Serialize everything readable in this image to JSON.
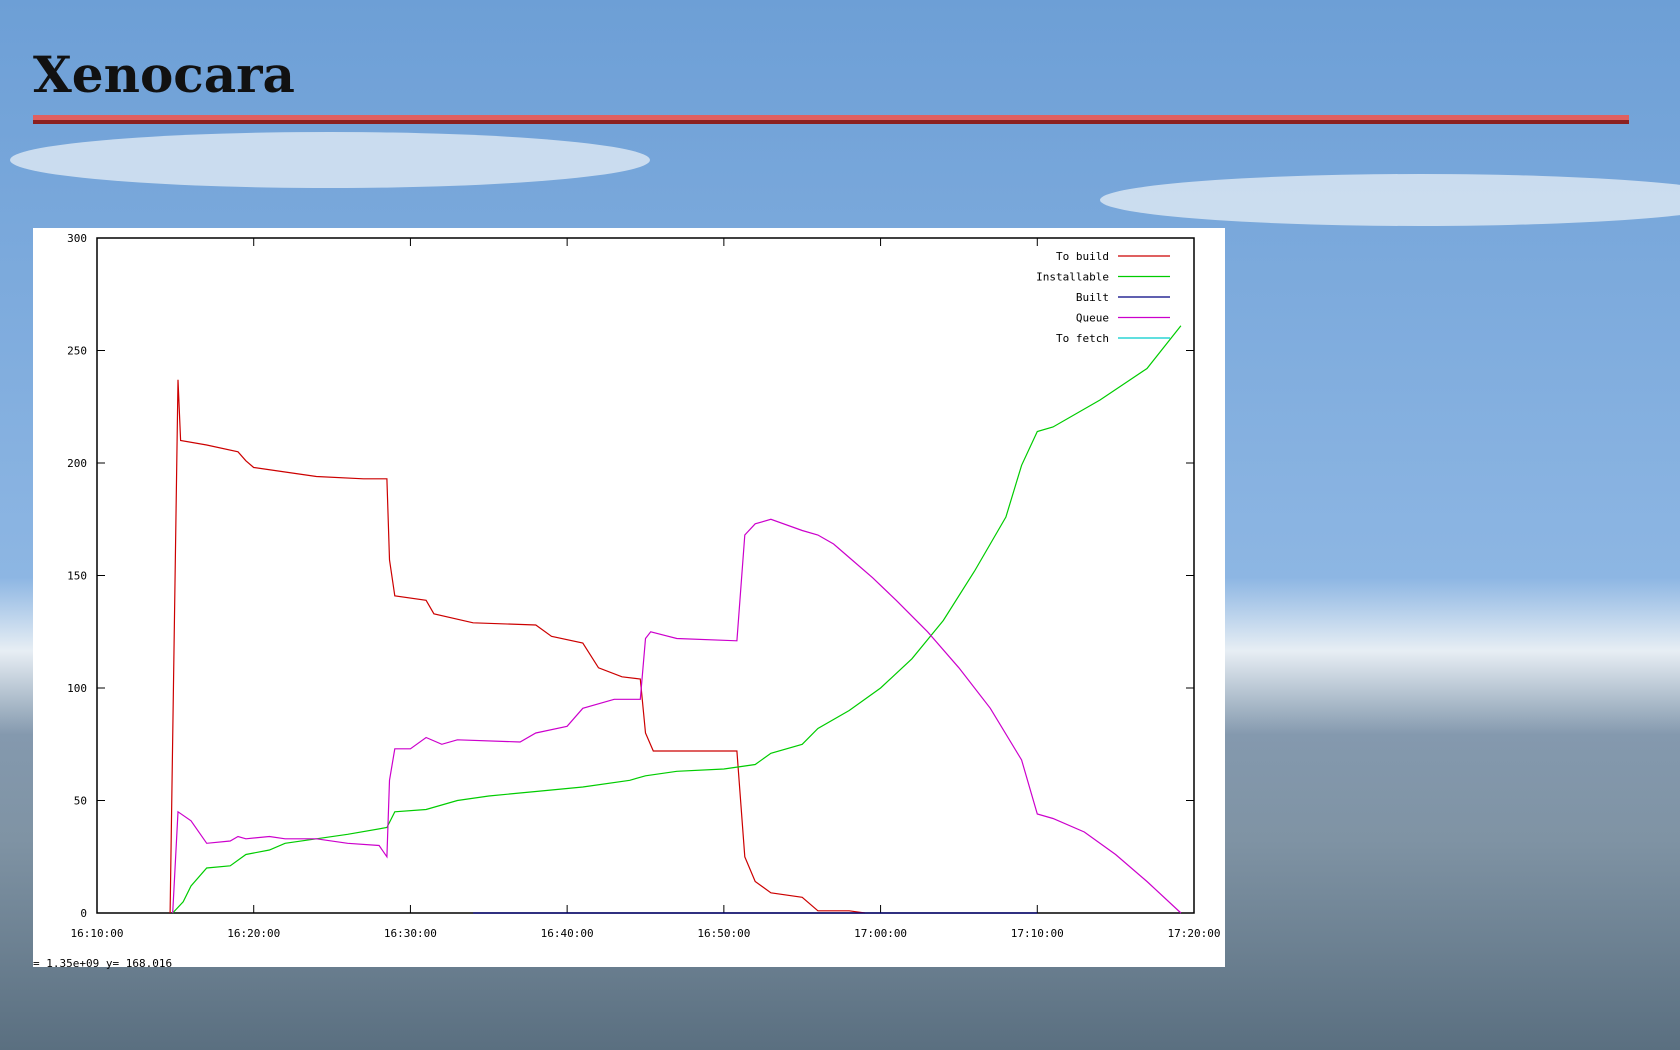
{
  "title": "Xenocara",
  "status": "=    1.35e+09 y=     168.016",
  "chart_data": {
    "type": "line",
    "xlim": [
      "16:10:00",
      "17:20:00"
    ],
    "xticks": [
      "16:10:00",
      "16:20:00",
      "16:30:00",
      "16:40:00",
      "16:50:00",
      "17:00:00",
      "17:10:00",
      "17:20:00"
    ],
    "ylim": [
      0,
      300
    ],
    "yticks": [
      0,
      50,
      100,
      150,
      200,
      250,
      300
    ],
    "legend": "top-right",
    "series": [
      {
        "name": "To build",
        "color": "#cc0000",
        "x": [
          "16:14:40",
          "16:15:10",
          "16:15:20",
          "16:17:00",
          "16:19:00",
          "16:19:30",
          "16:20:00",
          "16:22:00",
          "16:24:00",
          "16:27:00",
          "16:28:30",
          "16:28:40",
          "16:29:00",
          "16:31:00",
          "16:31:30",
          "16:34:00",
          "16:38:00",
          "16:39:00",
          "16:41:00",
          "16:42:00",
          "16:43:30",
          "16:44:40",
          "16:45:00",
          "16:45:30",
          "16:50:50",
          "16:51:20",
          "16:52:00",
          "16:53:00",
          "16:55:00",
          "16:56:00",
          "16:58:00",
          "16:59:00"
        ],
        "values": [
          0,
          237,
          210,
          208,
          205,
          201,
          198,
          196,
          194,
          193,
          193,
          157,
          141,
          139,
          133,
          129,
          128,
          123,
          120,
          109,
          105,
          104,
          80,
          72,
          72,
          25,
          14,
          9,
          7,
          1,
          1,
          0
        ]
      },
      {
        "name": "Installable",
        "color": "#00cc00",
        "x": [
          "16:14:50",
          "16:15:30",
          "16:16:00",
          "16:17:00",
          "16:18:30",
          "16:19:30",
          "16:21:00",
          "16:22:00",
          "16:24:00",
          "16:26:00",
          "16:28:30",
          "16:29:00",
          "16:31:00",
          "16:33:00",
          "16:35:00",
          "16:38:00",
          "16:41:00",
          "16:44:00",
          "16:45:00",
          "16:47:00",
          "16:50:00",
          "16:52:00",
          "16:53:00",
          "16:55:00",
          "16:56:00",
          "16:58:00",
          "17:00:00",
          "17:02:00",
          "17:04:00",
          "17:06:00",
          "17:08:00",
          "17:09:00",
          "17:10:00",
          "17:11:00",
          "17:14:00",
          "17:17:00",
          "17:19:10"
        ],
        "values": [
          0,
          5,
          12,
          20,
          21,
          26,
          28,
          31,
          33,
          35,
          38,
          45,
          46,
          50,
          52,
          54,
          56,
          59,
          61,
          63,
          64,
          66,
          71,
          75,
          82,
          90,
          100,
          113,
          130,
          152,
          176,
          199,
          214,
          216,
          228,
          242,
          261
        ]
      },
      {
        "name": "Built",
        "color": "#000080",
        "x": [
          "16:34:00",
          "17:10:00"
        ],
        "values": [
          0,
          0
        ]
      },
      {
        "name": "Queue",
        "color": "#cc00cc",
        "x": [
          "16:14:50",
          "16:15:10",
          "16:16:00",
          "16:17:00",
          "16:18:30",
          "16:19:00",
          "16:19:30",
          "16:21:00",
          "16:22:00",
          "16:24:00",
          "16:26:00",
          "16:28:00",
          "16:28:30",
          "16:28:40",
          "16:29:00",
          "16:30:00",
          "16:31:00",
          "16:32:00",
          "16:33:00",
          "16:37:00",
          "16:38:00",
          "16:40:00",
          "16:41:00",
          "16:43:00",
          "16:44:40",
          "16:45:00",
          "16:45:20",
          "16:47:00",
          "16:50:50",
          "16:51:20",
          "16:52:00",
          "16:53:00",
          "16:55:00",
          "16:56:00",
          "16:57:00",
          "16:58:00",
          "16:59:30",
          "17:01:00",
          "17:03:00",
          "17:05:00",
          "17:07:00",
          "17:09:00",
          "17:10:00",
          "17:11:00",
          "17:13:00",
          "17:15:00",
          "17:17:00",
          "17:19:10"
        ],
        "values": [
          0,
          45,
          41,
          31,
          32,
          34,
          33,
          34,
          33,
          33,
          31,
          30,
          25,
          59,
          73,
          73,
          78,
          75,
          77,
          76,
          80,
          83,
          91,
          95,
          95,
          122,
          125,
          122,
          121,
          168,
          173,
          175,
          170,
          168,
          164,
          158,
          149,
          139,
          125,
          109,
          91,
          68,
          44,
          42,
          36,
          26,
          14,
          0
        ]
      },
      {
        "name": "To fetch",
        "color": "#00cccc",
        "x": [],
        "values": []
      }
    ]
  }
}
